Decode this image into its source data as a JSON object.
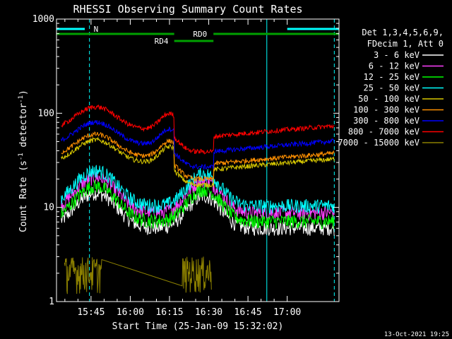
{
  "chart_data": {
    "type": "line",
    "title": "RHESSI Observing Summary Count Rates",
    "xlabel": "Start Time (25-Jan-09 15:32:02)",
    "ylabel": "Count Rate (s⁻¹ detector⁻¹)",
    "ylabel_parts": {
      "main": "Count Rate (s",
      "sup1": "-1",
      "mid": " detector",
      "sup2": "-1",
      "end": ")"
    },
    "yscale": "log",
    "ylim": [
      1,
      1000
    ],
    "xlim_minutes": [
      15.53,
      17.33
    ],
    "x_ticks": [
      {
        "label": "15:45",
        "t": 15.75
      },
      {
        "label": "16:00",
        "t": 16.0
      },
      {
        "label": "16:15",
        "t": 16.25
      },
      {
        "label": "16:30",
        "t": 16.5
      },
      {
        "label": "16:45",
        "t": 16.75
      },
      {
        "label": "17:00",
        "t": 17.0
      }
    ],
    "y_ticks": [
      {
        "label": "1",
        "v": 1
      },
      {
        "label": "10",
        "v": 10
      },
      {
        "label": "100",
        "v": 100
      },
      {
        "label": "1000",
        "v": 1000
      }
    ],
    "legend_header": [
      "Det 1,3,4,5,6,9,",
      "FDecim 1, Att 0"
    ],
    "legend_position": "right",
    "series": [
      {
        "name": "3 - 6 keV",
        "color": "#ffffff",
        "base": 11
      },
      {
        "name": "6 - 12 keV",
        "color": "#ff40ff",
        "base": 16
      },
      {
        "name": "12 - 25 keV",
        "color": "#00ff00",
        "base": 13
      },
      {
        "name": "25 - 50 keV",
        "color": "#00ffff",
        "base": 19
      },
      {
        "name": "50 - 100 keV",
        "color": "#d8c800",
        "base": 40
      },
      {
        "name": "100 - 300 keV",
        "color": "#ff9000",
        "base": 46
      },
      {
        "name": "300 - 800 keV",
        "color": "#0000ff",
        "base": 62
      },
      {
        "name": "800 - 7000 keV",
        "color": "#ff0000",
        "base": 90
      },
      {
        "name": "7000 - 15000 keV",
        "color": "#8c8000",
        "base": 1.5
      }
    ],
    "flags": [
      {
        "label": "N",
        "color": "#00ffff"
      },
      {
        "label": "RD0",
        "color": "#00a000"
      },
      {
        "label": "RD4",
        "color": "#00a000"
      }
    ],
    "vertical_markers": [
      {
        "t": 15.74,
        "style": "dashed",
        "color": "#00ffff"
      },
      {
        "t": 16.87,
        "style": "solid",
        "color": "#00ffff"
      },
      {
        "t": 17.3,
        "style": "dashed",
        "color": "#00ffff"
      }
    ],
    "grid": false
  },
  "footer": {
    "timestamp": "13-Oct-2021 19:25"
  }
}
